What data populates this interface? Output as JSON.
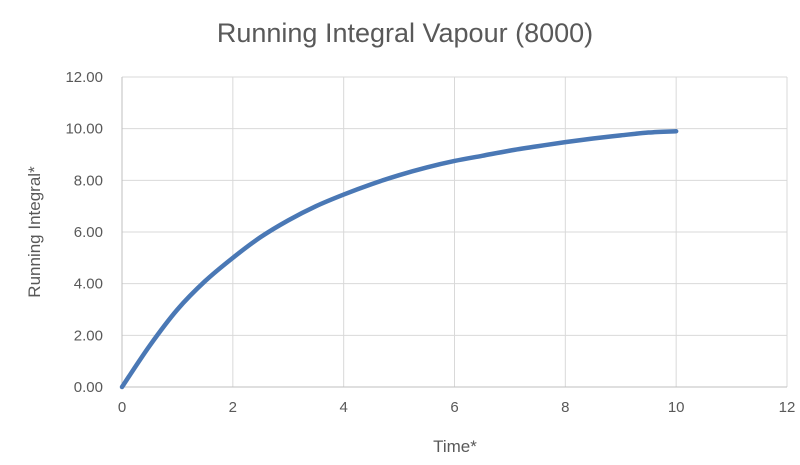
{
  "chart_data": {
    "type": "line",
    "title": "Running Integral Vapour (8000)",
    "xlabel": "Time*",
    "ylabel": "Running Integral*",
    "xlim": [
      0,
      12
    ],
    "ylim": [
      0,
      12
    ],
    "x_ticks": [
      0,
      2,
      4,
      6,
      8,
      10,
      12
    ],
    "x_tick_labels": [
      "0",
      "2",
      "4",
      "6",
      "8",
      "10",
      "12"
    ],
    "y_ticks": [
      0,
      2,
      4,
      6,
      8,
      10,
      12
    ],
    "y_tick_labels": [
      "0.00",
      "2.00",
      "4.00",
      "6.00",
      "8.00",
      "10.00",
      "12.00"
    ],
    "grid": true,
    "legend": "none",
    "series": [
      {
        "color": "#4a78b5",
        "x": [
          0,
          0.5,
          1,
          1.5,
          2,
          2.5,
          3,
          3.5,
          4,
          4.5,
          5,
          5.5,
          6,
          6.5,
          7,
          7.5,
          8,
          8.5,
          9,
          9.5,
          10
        ],
        "y": [
          0,
          1.6,
          3.0,
          4.1,
          5.0,
          5.8,
          6.45,
          7.0,
          7.45,
          7.85,
          8.2,
          8.5,
          8.75,
          8.95,
          9.15,
          9.32,
          9.48,
          9.62,
          9.74,
          9.85,
          9.9
        ]
      }
    ]
  },
  "colors": {
    "grid": "#d9d9d9",
    "axis": "#bfbfbf",
    "text": "#595959"
  }
}
